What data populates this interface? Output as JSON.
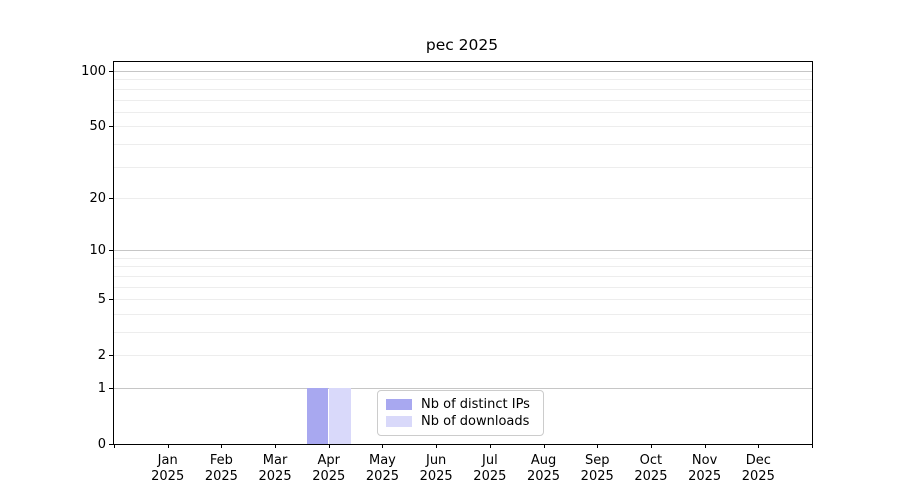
{
  "chart_data": {
    "type": "bar",
    "title": "pec 2025",
    "categories": [
      "Jan",
      "Feb",
      "Mar",
      "Apr",
      "May",
      "Jun",
      "Jul",
      "Aug",
      "Sep",
      "Oct",
      "Nov",
      "Dec"
    ],
    "year_label": "2025",
    "series": [
      {
        "name": "Nb of distinct IPs",
        "color": "#a8a8f0",
        "values": [
          0,
          0,
          0,
          1,
          0,
          0,
          0,
          0,
          0,
          0,
          0,
          0
        ]
      },
      {
        "name": "Nb of downloads",
        "color": "#d9d9fa",
        "values": [
          0,
          0,
          0,
          1,
          0,
          0,
          0,
          0,
          0,
          0,
          0,
          0
        ]
      }
    ],
    "xlabel": "",
    "ylabel": "",
    "yscale": "symlog",
    "ylim": [
      0,
      112
    ],
    "yticks": [
      0,
      1,
      2,
      5,
      10,
      20,
      50,
      100
    ],
    "major_gridlines": [
      1,
      10,
      100
    ],
    "minor_gridlines": [
      2,
      3,
      4,
      5,
      6,
      7,
      8,
      9,
      20,
      30,
      40,
      50,
      60,
      70,
      80,
      90
    ],
    "grid": "horizontal",
    "legend_position": "lower center"
  },
  "colors": {
    "series_distinct_ips": "#a8a8f0",
    "series_downloads": "#d9d9fa",
    "grid_minor": "#ededed",
    "grid_major": "#c6c6c6",
    "axis_frame": "#000000",
    "legend_border": "#cccccc"
  }
}
